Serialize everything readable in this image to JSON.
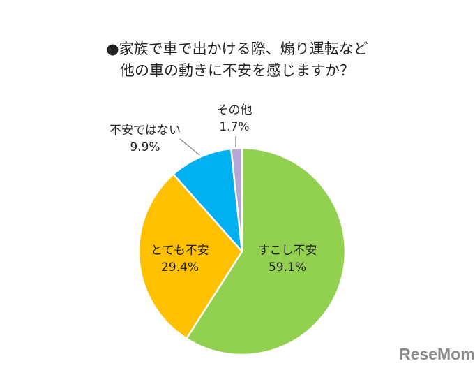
{
  "chart_data": {
    "type": "pie",
    "title_lines": [
      "●家族で車で出かける際、煽り運転など",
      "他の車の動きに不安を感じますか？"
    ],
    "slices": [
      {
        "label": "すこし不安",
        "value_text": "59.1%",
        "value": 59.1,
        "color": "#92d050"
      },
      {
        "label": "とても不安",
        "value_text": "29.4%",
        "value": 29.4,
        "color": "#ffc000"
      },
      {
        "label": "不安ではない",
        "value_text": "9.9%",
        "value": 9.9,
        "color": "#00b0f0"
      },
      {
        "label": "その他",
        "value_text": "1.7%",
        "value": 1.7,
        "color": "#b4a7d6"
      }
    ],
    "start_angle_deg": 0,
    "direction": "clockwise",
    "leader_lines": true
  },
  "watermark": {
    "text": "ReseMom",
    "color": "#8a8a8a"
  }
}
